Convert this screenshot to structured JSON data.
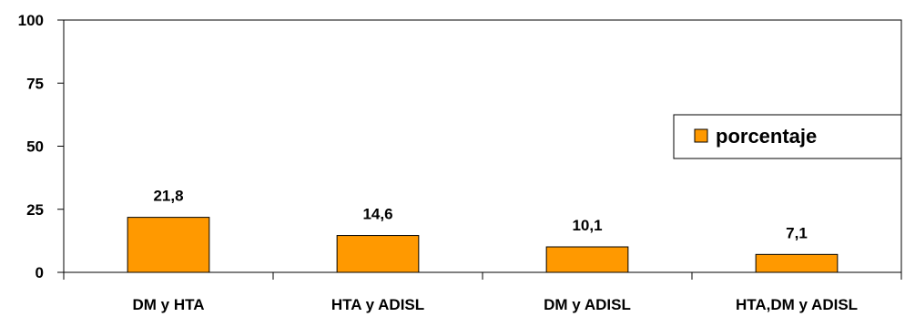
{
  "chart_data": {
    "type": "bar",
    "categories": [
      "DM y HTA",
      "HTA y ADISL",
      "DM y ADISL",
      "HTA,DM y ADISL"
    ],
    "series": [
      {
        "name": "porcentaje",
        "values": [
          21.8,
          14.6,
          10.1,
          7.1
        ]
      }
    ],
    "data_labels": [
      "21,8",
      "14,6",
      "10,1",
      "7,1"
    ],
    "yticks": [
      "0",
      "25",
      "50",
      "75",
      "100"
    ],
    "ylim": [
      0,
      100
    ],
    "grid": false,
    "legend_position": "right",
    "colors": {
      "bar_fill": "#FF9900",
      "bar_stroke": "#000000",
      "axis": "#000000"
    }
  }
}
